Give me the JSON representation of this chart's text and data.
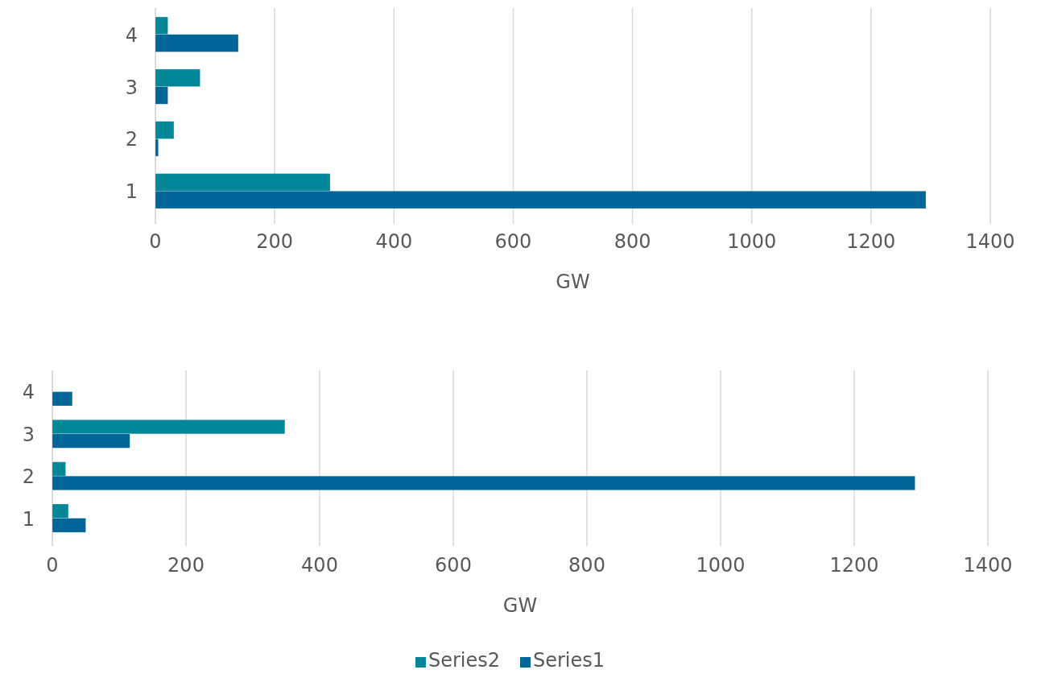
{
  "chart_data": [
    {
      "type": "bar",
      "orientation": "horizontal",
      "xlabel": "GW",
      "categories": [
        "4",
        "3",
        "2",
        "1"
      ],
      "xlim": [
        0,
        1400
      ],
      "xticks": [
        0,
        200,
        400,
        600,
        800,
        1000,
        1200,
        1400
      ],
      "grid": "x",
      "legend": false,
      "series": [
        {
          "color": "#00879a",
          "values": [
            21,
            75,
            31,
            293
          ]
        },
        {
          "color": "#006699",
          "values": [
            139,
            21,
            5,
            1292
          ]
        }
      ]
    },
    {
      "type": "bar",
      "orientation": "horizontal",
      "xlabel": "GW",
      "categories": [
        "4",
        "3",
        "2",
        "1"
      ],
      "xlim": [
        0,
        1400
      ],
      "xticks": [
        0,
        200,
        400,
        600,
        800,
        1000,
        1200,
        1400
      ],
      "grid": "x",
      "legend": "bottom",
      "series": [
        {
          "name": "Series2",
          "color": "#00879a",
          "values": [
            null,
            348,
            20,
            24
          ]
        },
        {
          "name": "Series1",
          "color": "#006699",
          "values": [
            30,
            116,
            1291,
            50
          ]
        }
      ]
    }
  ]
}
